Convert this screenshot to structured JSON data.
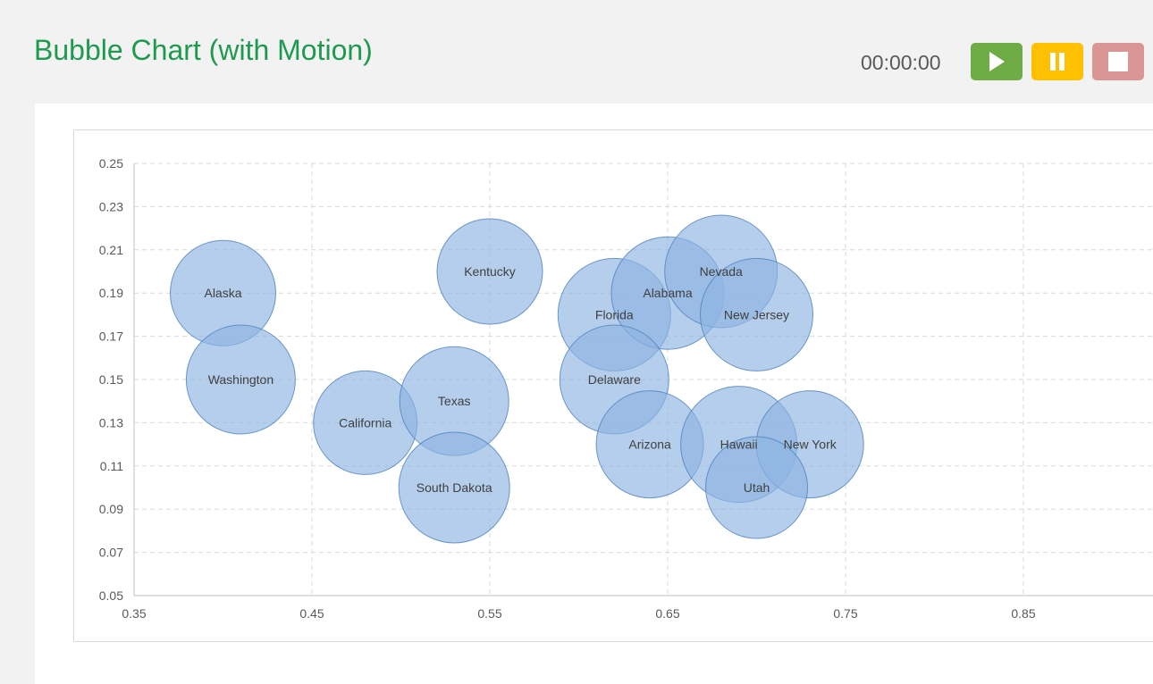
{
  "header": {
    "title": "Bubble Chart (with Motion)",
    "timer": "00:00:00",
    "buttons": [
      {
        "name": "play",
        "icon": "play-icon",
        "color": "#6fac46"
      },
      {
        "name": "pause",
        "icon": "pause-icon",
        "color": "#ffc000"
      },
      {
        "name": "stop",
        "icon": "stop-icon",
        "color": "#da9694"
      }
    ]
  },
  "chart_data": {
    "type": "bubble",
    "title": "",
    "xlabel": "",
    "ylabel": "",
    "xlim": [
      0.35,
      0.95
    ],
    "ylim": [
      0.05,
      0.25
    ],
    "xticks": [
      "0.35",
      "0.45",
      "0.55",
      "0.65",
      "0.75",
      "0.85"
    ],
    "yticks": [
      "0.05",
      "0.07",
      "0.09",
      "0.11",
      "0.13",
      "0.15",
      "0.17",
      "0.19",
      "0.21",
      "0.23",
      "0.25"
    ],
    "grid": true,
    "bubble_color": "#8db3e2",
    "points": [
      {
        "label": "Alaska",
        "x": 0.4,
        "y": 0.19,
        "size": 59
      },
      {
        "label": "Washington",
        "x": 0.41,
        "y": 0.15,
        "size": 61
      },
      {
        "label": "California",
        "x": 0.48,
        "y": 0.13,
        "size": 58
      },
      {
        "label": "Texas",
        "x": 0.53,
        "y": 0.14,
        "size": 61
      },
      {
        "label": "South Dakota",
        "x": 0.53,
        "y": 0.1,
        "size": 62
      },
      {
        "label": "Kentucky",
        "x": 0.55,
        "y": 0.2,
        "size": 59
      },
      {
        "label": "Florida",
        "x": 0.62,
        "y": 0.18,
        "size": 63
      },
      {
        "label": "Alabama",
        "x": 0.65,
        "y": 0.19,
        "size": 63
      },
      {
        "label": "Nevada",
        "x": 0.68,
        "y": 0.2,
        "size": 63
      },
      {
        "label": "New Jersey",
        "x": 0.7,
        "y": 0.18,
        "size": 63
      },
      {
        "label": "Delaware",
        "x": 0.62,
        "y": 0.15,
        "size": 61
      },
      {
        "label": "Arizona",
        "x": 0.64,
        "y": 0.12,
        "size": 60
      },
      {
        "label": "Hawaii",
        "x": 0.69,
        "y": 0.12,
        "size": 65
      },
      {
        "label": "New York",
        "x": 0.73,
        "y": 0.12,
        "size": 60
      },
      {
        "label": "Utah",
        "x": 0.7,
        "y": 0.1,
        "size": 57
      }
    ]
  }
}
